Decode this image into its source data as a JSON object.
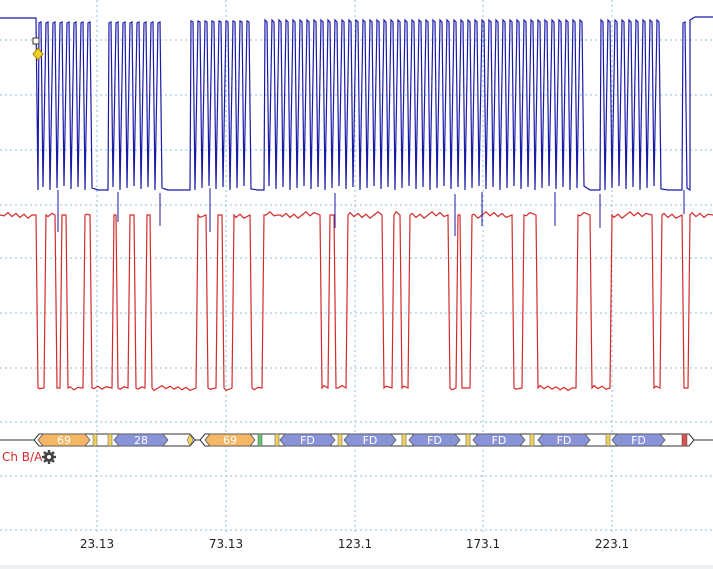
{
  "waveform": {
    "ch_a_color": "#1a1aa8",
    "ch_b_color": "#d42a2a",
    "grid_color": "#8fc0dc"
  },
  "decode": {
    "label": "Ch B/A",
    "label_color": "#d42a2a",
    "settings_icon": "gear-icon",
    "colors": {
      "address": "#f5b766",
      "data": "#8994d8",
      "start": "#f0d060",
      "ack": "#6cc070",
      "stop": "#d85050"
    },
    "packets": [
      {
        "kind": "address",
        "text": "69"
      },
      {
        "kind": "data",
        "text": "28"
      },
      {
        "kind": "address",
        "text": "69"
      },
      {
        "kind": "data",
        "text": "FD"
      },
      {
        "kind": "data",
        "text": "FD"
      },
      {
        "kind": "data",
        "text": "FD"
      },
      {
        "kind": "data",
        "text": "FD"
      },
      {
        "kind": "data",
        "text": "FD"
      },
      {
        "kind": "data",
        "text": "FD"
      }
    ]
  },
  "time_axis": {
    "ticks": [
      "23.13",
      "73.13",
      "123.1",
      "173.1",
      "223.1"
    ]
  }
}
